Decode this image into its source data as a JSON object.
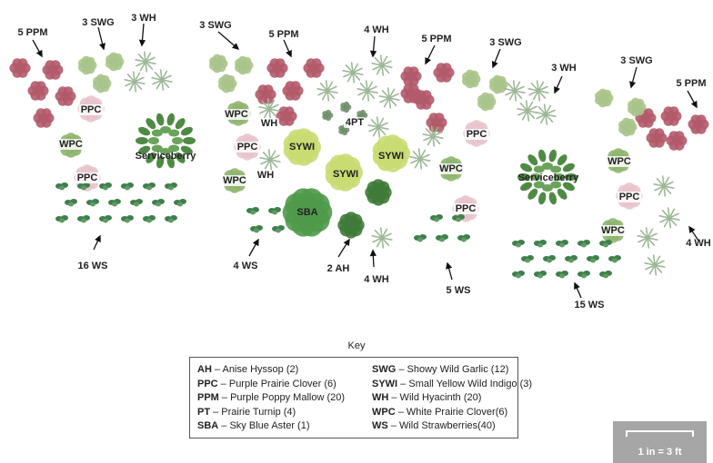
{
  "labels": {
    "ppm_1": "5 PPM",
    "swg_1": "3 SWG",
    "wh_1": "3 WH",
    "swg_2": "3 SWG",
    "ppm_2": "5 PPM",
    "wh_2": "4 WH",
    "ppm_3": "5 PPM",
    "swg_3": "3 SWG",
    "wh_3": "3 WH",
    "swg_4": "3 SWG",
    "ppm_4": "5 PPM",
    "ppc_1": "PPC",
    "wpc_1": "WPC",
    "ppc_2": "PPC",
    "serviceberry_1": "Serviceberry",
    "wpc_2": "WPC",
    "wh_small_1": "WH",
    "ppc_3": "PPC",
    "wpc_3": "WPC",
    "wh_small_2": "WH",
    "pt": "4PT",
    "sywi_1": "SYWI",
    "sywi_2": "SYWI",
    "sywi_3": "SYWI",
    "sba": "SBA",
    "ppc_4": "PPC",
    "wpc_4": "WPC",
    "ppc_5": "PPC",
    "serviceberry_2": "Serviceberry",
    "wpc_5": "WPC",
    "ppc_6": "PPC",
    "wpc_6": "WPC",
    "ws_1": "16 WS",
    "ws_2": "4 WS",
    "ah": "2 AH",
    "wh_4": "4 WH",
    "ws_3": "5 WS",
    "ws_4": "15 WS",
    "wh_5": "4 WH"
  },
  "key": {
    "title": "Key",
    "left": [
      {
        "code": "AH",
        "text": " – Anise Hyssop (2)"
      },
      {
        "code": "PPC",
        "text": " – Purple Prairie Clover (6)"
      },
      {
        "code": "PPM",
        "text": " – Purple Poppy Mallow (20)"
      },
      {
        "code": "PT",
        "text": " – Prairie Turnip (4)"
      },
      {
        "code": "SBA",
        "text": " – Sky Blue Aster (1)"
      }
    ],
    "right": [
      {
        "code": "SWG",
        "text": " – Showy Wild Garlic (12)"
      },
      {
        "code": "SYWI",
        "text": " – Small Yellow Wild Indigo (3)"
      },
      {
        "code": "WH",
        "text": " – Wild Hyacinth (20)"
      },
      {
        "code": "WPC",
        "text": " – White Prairie Clover(6)"
      },
      {
        "code": "WS",
        "text": " – Wild Strawberries(40)"
      }
    ]
  },
  "scale": {
    "text": "1 in = 3 ft"
  },
  "colors": {
    "ppm": "#b35a6a",
    "ppc": "#e8c4cc",
    "swg": "#a9c48a",
    "wh": "#d9e4d2",
    "wpc": "#8fb56e",
    "sywi": "#c9dc72",
    "sba": "#4f9a4a",
    "ah": "#3f7a38",
    "ws": "#3f7f4c",
    "serviceberry": "#4f8a44",
    "pt": "#6f8f6a"
  }
}
